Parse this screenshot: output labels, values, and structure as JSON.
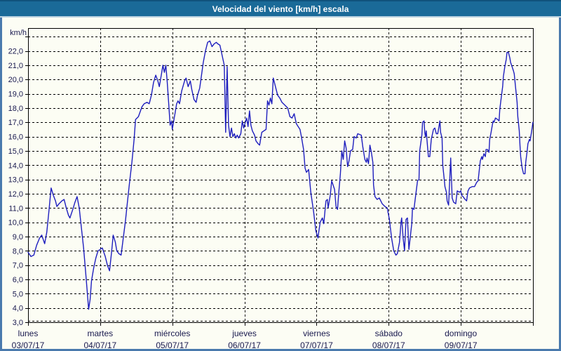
{
  "title": "Velocidad del viento [km/h] escala",
  "colors": {
    "titlebar_bg": "#1a6a98",
    "titlebar_top_edge": "#10527c",
    "titlebar_separator": "#bdd3e1",
    "window_border": "#4a7aad",
    "plot_background": "#fcfdf4",
    "grid": "#000000",
    "axis_text": "#18184e",
    "title_text": "#ffffff",
    "line": "#1e1ebe"
  },
  "chart_data": {
    "type": "line",
    "title": "Velocidad del viento [km/h] escala",
    "ylabel": "km/h",
    "xlabel": "",
    "grid": "dashed-on",
    "legend": "none",
    "ylim": [
      3.0,
      23.6
    ],
    "ytick_step": 1.0,
    "ytick_labels": [
      "3,0",
      "4,0",
      "5,0",
      "6,0",
      "7,0",
      "8,0",
      "9,0",
      "10,0",
      "11,0",
      "12,0",
      "13,0",
      "14,0",
      "15,0",
      "16,0",
      "17,0",
      "18,0",
      "19,0",
      "20,0",
      "21,0",
      "22,0"
    ],
    "x_days": [
      {
        "name": "lunes",
        "date": "03/07/17"
      },
      {
        "name": "martes",
        "date": "04/07/17"
      },
      {
        "name": "miércoles",
        "date": "05/07/17"
      },
      {
        "name": "jueves",
        "date": "06/07/17"
      },
      {
        "name": "viernes",
        "date": "07/07/17"
      },
      {
        "name": "sábado",
        "date": "08/07/17"
      },
      {
        "name": "domingo",
        "date": "09/07/17"
      }
    ],
    "x_range_days": [
      0,
      7
    ],
    "series": [
      {
        "name": "Velocidad del viento [km/h]",
        "color": "#1e1ebe",
        "points": [
          [
            0.0,
            7.9
          ],
          [
            0.04,
            7.6
          ],
          [
            0.08,
            7.7
          ],
          [
            0.12,
            8.4
          ],
          [
            0.16,
            8.9
          ],
          [
            0.19,
            9.1
          ],
          [
            0.23,
            8.5
          ],
          [
            0.26,
            9.3
          ],
          [
            0.29,
            10.8
          ],
          [
            0.32,
            12.4
          ],
          [
            0.35,
            11.9
          ],
          [
            0.38,
            11.5
          ],
          [
            0.4,
            11.1
          ],
          [
            0.43,
            11.3
          ],
          [
            0.47,
            11.5
          ],
          [
            0.5,
            11.6
          ],
          [
            0.53,
            11.0
          ],
          [
            0.56,
            10.5
          ],
          [
            0.58,
            10.3
          ],
          [
            0.62,
            10.9
          ],
          [
            0.65,
            11.4
          ],
          [
            0.68,
            11.8
          ],
          [
            0.71,
            11.0
          ],
          [
            0.74,
            9.6
          ],
          [
            0.77,
            8.2
          ],
          [
            0.8,
            6.4
          ],
          [
            0.82,
            5.2
          ],
          [
            0.84,
            3.9
          ],
          [
            0.86,
            4.6
          ],
          [
            0.88,
            5.9
          ],
          [
            0.91,
            6.8
          ],
          [
            0.94,
            7.5
          ],
          [
            0.97,
            8.0
          ],
          [
            1.0,
            8.1
          ],
          [
            1.03,
            8.2
          ],
          [
            1.07,
            7.6
          ],
          [
            1.1,
            7.0
          ],
          [
            1.13,
            6.6
          ],
          [
            1.16,
            8.0
          ],
          [
            1.18,
            9.1
          ],
          [
            1.21,
            8.6
          ],
          [
            1.23,
            8.0
          ],
          [
            1.26,
            7.8
          ],
          [
            1.29,
            7.7
          ],
          [
            1.32,
            8.9
          ],
          [
            1.35,
            10.1
          ],
          [
            1.38,
            11.5
          ],
          [
            1.41,
            12.9
          ],
          [
            1.44,
            14.2
          ],
          [
            1.47,
            15.8
          ],
          [
            1.49,
            17.2
          ],
          [
            1.53,
            17.4
          ],
          [
            1.58,
            18.1
          ],
          [
            1.61,
            18.3
          ],
          [
            1.65,
            18.4
          ],
          [
            1.68,
            18.3
          ],
          [
            1.71,
            18.9
          ],
          [
            1.74,
            19.8
          ],
          [
            1.77,
            20.3
          ],
          [
            1.8,
            19.9
          ],
          [
            1.82,
            19.5
          ],
          [
            1.85,
            20.4
          ],
          [
            1.87,
            21.0
          ],
          [
            1.89,
            20.5
          ],
          [
            1.91,
            21.0
          ],
          [
            1.93,
            19.8
          ],
          [
            1.95,
            18.3
          ],
          [
            1.97,
            16.8
          ],
          [
            1.99,
            17.1
          ],
          [
            2.0,
            16.5
          ],
          [
            2.03,
            17.4
          ],
          [
            2.06,
            18.3
          ],
          [
            2.08,
            18.5
          ],
          [
            2.1,
            18.3
          ],
          [
            2.13,
            19.2
          ],
          [
            2.17,
            19.9
          ],
          [
            2.19,
            20.1
          ],
          [
            2.22,
            19.5
          ],
          [
            2.25,
            19.9
          ],
          [
            2.27,
            19.3
          ],
          [
            2.3,
            18.6
          ],
          [
            2.33,
            18.4
          ],
          [
            2.35,
            18.9
          ],
          [
            2.38,
            19.4
          ],
          [
            2.41,
            20.5
          ],
          [
            2.43,
            21.2
          ],
          [
            2.46,
            22.0
          ],
          [
            2.49,
            22.6
          ],
          [
            2.52,
            22.7
          ],
          [
            2.55,
            22.3
          ],
          [
            2.58,
            22.5
          ],
          [
            2.61,
            22.6
          ],
          [
            2.63,
            22.5
          ],
          [
            2.66,
            22.4
          ],
          [
            2.69,
            21.7
          ],
          [
            2.72,
            21.0
          ],
          [
            2.74,
            16.3
          ],
          [
            2.76,
            20.9
          ],
          [
            2.78,
            16.8
          ],
          [
            2.8,
            16.0
          ],
          [
            2.82,
            16.6
          ],
          [
            2.84,
            16.0
          ],
          [
            2.86,
            16.2
          ],
          [
            2.88,
            15.9
          ],
          [
            2.9,
            16.1
          ],
          [
            2.92,
            15.9
          ],
          [
            2.95,
            16.2
          ],
          [
            2.97,
            17.1
          ],
          [
            2.99,
            16.6
          ],
          [
            3.0,
            16.8
          ],
          [
            3.03,
            17.3
          ],
          [
            3.05,
            16.7
          ],
          [
            3.07,
            17.8
          ],
          [
            3.09,
            16.8
          ],
          [
            3.11,
            16.4
          ],
          [
            3.14,
            16.1
          ],
          [
            3.16,
            15.7
          ],
          [
            3.19,
            15.5
          ],
          [
            3.21,
            15.4
          ],
          [
            3.24,
            16.3
          ],
          [
            3.27,
            16.4
          ],
          [
            3.3,
            16.5
          ],
          [
            3.32,
            18.5
          ],
          [
            3.34,
            18.2
          ],
          [
            3.36,
            18.7
          ],
          [
            3.38,
            18.3
          ],
          [
            3.4,
            20.1
          ],
          [
            3.43,
            19.5
          ],
          [
            3.46,
            18.9
          ],
          [
            3.49,
            18.7
          ],
          [
            3.52,
            18.4
          ],
          [
            3.56,
            18.2
          ],
          [
            3.6,
            18.0
          ],
          [
            3.63,
            17.4
          ],
          [
            3.66,
            17.3
          ],
          [
            3.69,
            17.6
          ],
          [
            3.72,
            16.9
          ],
          [
            3.77,
            16.5
          ],
          [
            3.79,
            16.0
          ],
          [
            3.82,
            15.1
          ],
          [
            3.84,
            13.8
          ],
          [
            3.86,
            13.5
          ],
          [
            3.89,
            13.7
          ],
          [
            3.92,
            12.1
          ],
          [
            3.96,
            10.7
          ],
          [
            3.99,
            9.4
          ],
          [
            4.02,
            8.9
          ],
          [
            4.03,
            9.3
          ],
          [
            4.05,
            10.0
          ],
          [
            4.08,
            10.3
          ],
          [
            4.1,
            9.9
          ],
          [
            4.13,
            11.5
          ],
          [
            4.15,
            11.6
          ],
          [
            4.16,
            11.0
          ],
          [
            4.19,
            11.9
          ],
          [
            4.21,
            12.9
          ],
          [
            4.25,
            12.3
          ],
          [
            4.27,
            11.1
          ],
          [
            4.29,
            10.9
          ],
          [
            4.31,
            12.2
          ],
          [
            4.33,
            13.4
          ],
          [
            4.35,
            15.0
          ],
          [
            4.37,
            14.4
          ],
          [
            4.39,
            15.7
          ],
          [
            4.41,
            15.2
          ],
          [
            4.43,
            13.9
          ],
          [
            4.45,
            14.3
          ],
          [
            4.47,
            15.0
          ],
          [
            4.5,
            15.1
          ],
          [
            4.52,
            16.0
          ],
          [
            4.55,
            15.9
          ],
          [
            4.57,
            16.2
          ],
          [
            4.62,
            16.1
          ],
          [
            4.64,
            15.3
          ],
          [
            4.67,
            14.4
          ],
          [
            4.69,
            14.2
          ],
          [
            4.7,
            14.5
          ],
          [
            4.72,
            14.1
          ],
          [
            4.74,
            15.4
          ],
          [
            4.76,
            14.9
          ],
          [
            4.78,
            14.2
          ],
          [
            4.79,
            12.6
          ],
          [
            4.81,
            11.8
          ],
          [
            4.84,
            11.6
          ],
          [
            4.87,
            11.7
          ],
          [
            4.91,
            11.3
          ],
          [
            4.95,
            11.1
          ],
          [
            4.98,
            11.0
          ],
          [
            5.01,
            10.2
          ],
          [
            5.04,
            8.9
          ],
          [
            5.07,
            8.0
          ],
          [
            5.1,
            7.7
          ],
          [
            5.12,
            7.8
          ],
          [
            5.15,
            8.6
          ],
          [
            5.17,
            10.0
          ],
          [
            5.18,
            10.3
          ],
          [
            5.2,
            8.9
          ],
          [
            5.22,
            8.0
          ],
          [
            5.24,
            10.2
          ],
          [
            5.26,
            10.3
          ],
          [
            5.28,
            8.1
          ],
          [
            5.32,
            9.9
          ],
          [
            5.33,
            11.0
          ],
          [
            5.35,
            10.9
          ],
          [
            5.37,
            11.7
          ],
          [
            5.4,
            12.9
          ],
          [
            5.42,
            13.0
          ],
          [
            5.43,
            15.0
          ],
          [
            5.46,
            16.1
          ],
          [
            5.47,
            17.0
          ],
          [
            5.49,
            17.1
          ],
          [
            5.5,
            16.3
          ],
          [
            5.51,
            16.0
          ],
          [
            5.52,
            16.4
          ],
          [
            5.55,
            14.6
          ],
          [
            5.57,
            14.6
          ],
          [
            5.59,
            15.8
          ],
          [
            5.62,
            16.5
          ],
          [
            5.64,
            16.6
          ],
          [
            5.66,
            16.2
          ],
          [
            5.68,
            16.2
          ],
          [
            5.69,
            16.5
          ],
          [
            5.71,
            17.1
          ],
          [
            5.72,
            16.3
          ],
          [
            5.74,
            15.9
          ],
          [
            5.75,
            14.0
          ],
          [
            5.77,
            13.0
          ],
          [
            5.78,
            12.5
          ],
          [
            5.8,
            12.1
          ],
          [
            5.81,
            11.5
          ],
          [
            5.83,
            11.2
          ],
          [
            5.86,
            14.5
          ],
          [
            5.88,
            11.7
          ],
          [
            5.9,
            11.4
          ],
          [
            5.93,
            11.3
          ],
          [
            5.95,
            12.2
          ],
          [
            5.98,
            12.1
          ],
          [
            6.0,
            12.2
          ],
          [
            6.01,
            11.9
          ],
          [
            6.03,
            11.8
          ],
          [
            6.06,
            11.6
          ],
          [
            6.08,
            11.5
          ],
          [
            6.1,
            12.2
          ],
          [
            6.12,
            12.4
          ],
          [
            6.16,
            12.5
          ],
          [
            6.19,
            12.5
          ],
          [
            6.22,
            12.8
          ],
          [
            6.24,
            12.9
          ],
          [
            6.27,
            14.3
          ],
          [
            6.29,
            14.6
          ],
          [
            6.3,
            14.4
          ],
          [
            6.32,
            14.8
          ],
          [
            6.34,
            14.6
          ],
          [
            6.35,
            15.1
          ],
          [
            6.37,
            15.1
          ],
          [
            6.39,
            14.9
          ],
          [
            6.4,
            15.8
          ],
          [
            6.42,
            16.3
          ],
          [
            6.44,
            16.9
          ],
          [
            6.45,
            17.1
          ],
          [
            6.46,
            17.0
          ],
          [
            6.48,
            17.3
          ],
          [
            6.51,
            17.2
          ],
          [
            6.53,
            17.1
          ],
          [
            6.54,
            17.9
          ],
          [
            6.56,
            18.7
          ],
          [
            6.58,
            19.5
          ],
          [
            6.59,
            20.2
          ],
          [
            6.61,
            20.9
          ],
          [
            6.63,
            21.4
          ],
          [
            6.64,
            21.9
          ],
          [
            6.66,
            21.9
          ],
          [
            6.68,
            21.5
          ],
          [
            6.69,
            21.2
          ],
          [
            6.71,
            20.9
          ],
          [
            6.73,
            20.6
          ],
          [
            6.74,
            20.4
          ],
          [
            6.76,
            19.4
          ],
          [
            6.78,
            18.4
          ],
          [
            6.79,
            17.4
          ],
          [
            6.81,
            16.4
          ],
          [
            6.82,
            15.4
          ],
          [
            6.83,
            14.6
          ],
          [
            6.85,
            13.8
          ],
          [
            6.87,
            13.4
          ],
          [
            6.89,
            13.4
          ],
          [
            6.9,
            14.2
          ],
          [
            6.92,
            15.0
          ],
          [
            6.93,
            15.5
          ],
          [
            6.95,
            15.8
          ],
          [
            6.96,
            15.7
          ],
          [
            6.98,
            16.3
          ],
          [
            7.0,
            17.0
          ]
        ]
      }
    ]
  }
}
